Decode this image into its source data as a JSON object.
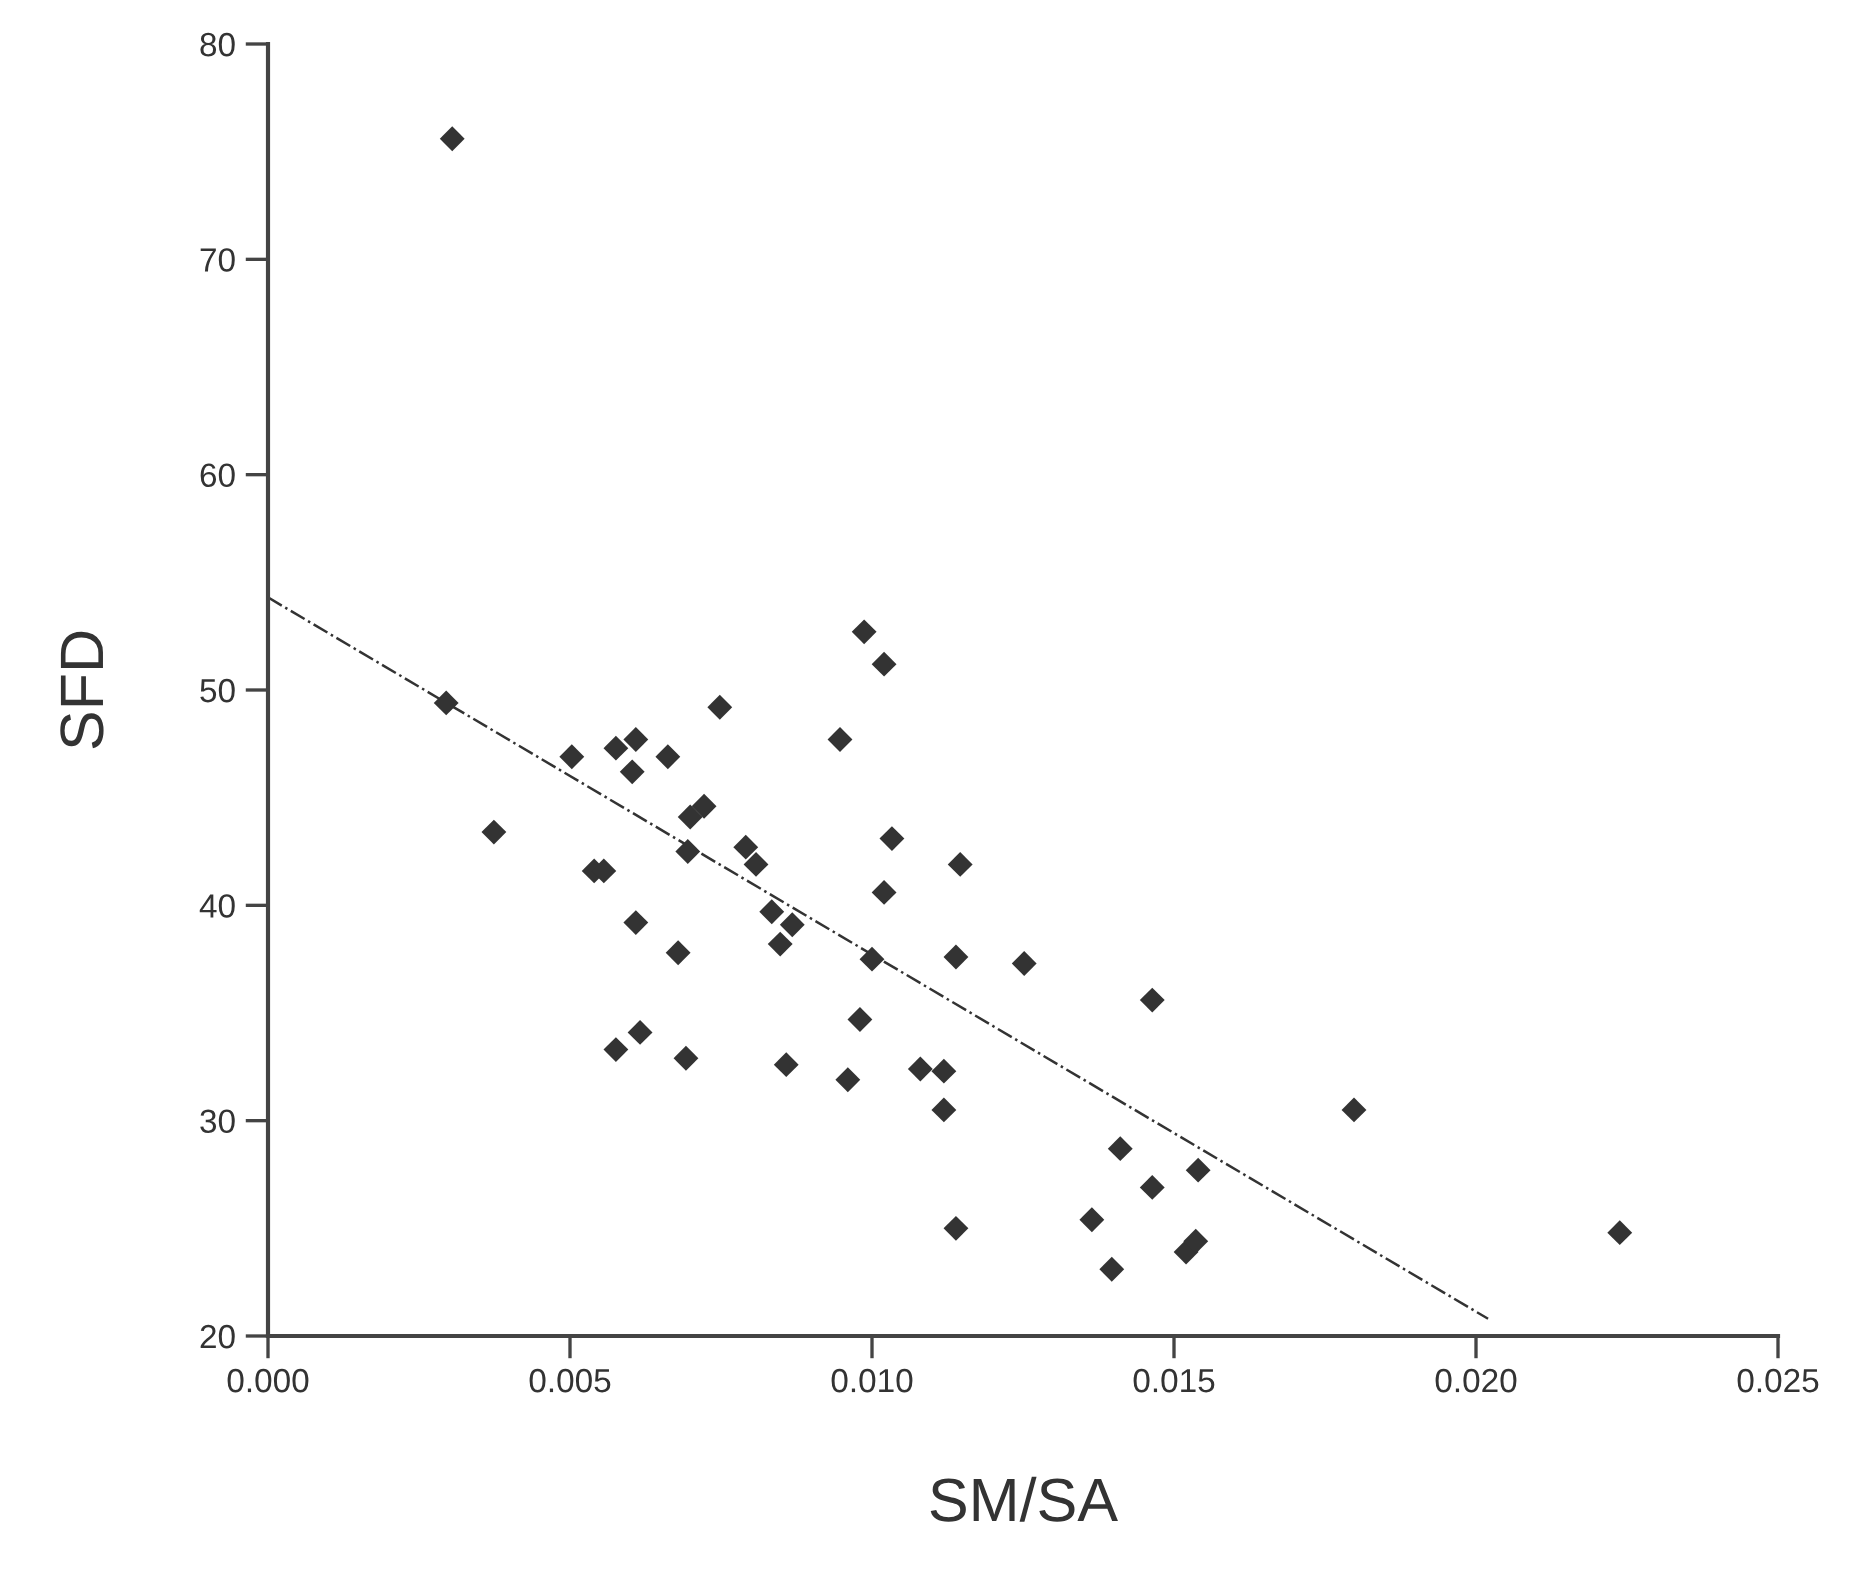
{
  "chart_data": {
    "type": "scatter",
    "xlabel": "SM/SA",
    "ylabel": "SFD",
    "marker": "diamond",
    "grid": false,
    "xlim": [
      0,
      0.025
    ],
    "ylim": [
      20,
      80
    ],
    "xticks": [
      {
        "value": 0,
        "label": "0.000"
      },
      {
        "value": 0.005,
        "label": "0.005"
      },
      {
        "value": 0.01,
        "label": "0.010"
      },
      {
        "value": 0.015,
        "label": "0.015"
      },
      {
        "value": 0.02,
        "label": "0.020"
      },
      {
        "value": 0.025,
        "label": "0.025"
      }
    ],
    "yticks": [
      20,
      30,
      40,
      50,
      60,
      70,
      80
    ],
    "series": [
      {
        "color": "#333333",
        "x": [
          0.00305,
          0.00295,
          0.00374,
          0.00503,
          0.0054,
          0.00556,
          0.00576,
          0.00609,
          0.00603,
          0.00662,
          0.00722,
          0.00699,
          0.00695,
          0.00791,
          0.00808,
          0.00748,
          0.00987,
          0.0102,
          0.00947,
          0.01033,
          0.0102,
          0.00609,
          0.00834,
          0.00868,
          0.00848,
          0.01,
          0.00679,
          0.0098,
          0.00576,
          0.00616,
          0.00692,
          0.00858,
          0.0096,
          0.01146,
          0.01139,
          0.01252,
          0.01464,
          0.0108,
          0.01119,
          0.01119,
          0.01798,
          0.01411,
          0.0154,
          0.01464,
          0.01139,
          0.01364,
          0.0152,
          0.01536,
          0.01397,
          0.02238
        ],
        "values": [
          75.6,
          49.4,
          43.4,
          46.9,
          41.6,
          41.6,
          47.3,
          47.7,
          46.2,
          46.9,
          44.6,
          44.1,
          42.5,
          42.7,
          41.9,
          49.2,
          52.7,
          51.2,
          47.7,
          43.1,
          40.6,
          39.2,
          39.7,
          39.1,
          38.2,
          37.5,
          37.8,
          34.7,
          33.3,
          34.1,
          32.9,
          32.6,
          31.9,
          41.9,
          37.6,
          37.3,
          35.6,
          32.4,
          32.3,
          30.5,
          30.5,
          28.7,
          27.7,
          26.9,
          25.0,
          25.4,
          23.9,
          24.4,
          23.1,
          24.8
        ]
      },
      {
        "type": "line",
        "color": "#333333",
        "marker": "none",
        "line_style": "dashdot",
        "x": [
          0,
          0.0202
        ],
        "values": [
          54.3,
          20.8
        ]
      }
    ]
  }
}
